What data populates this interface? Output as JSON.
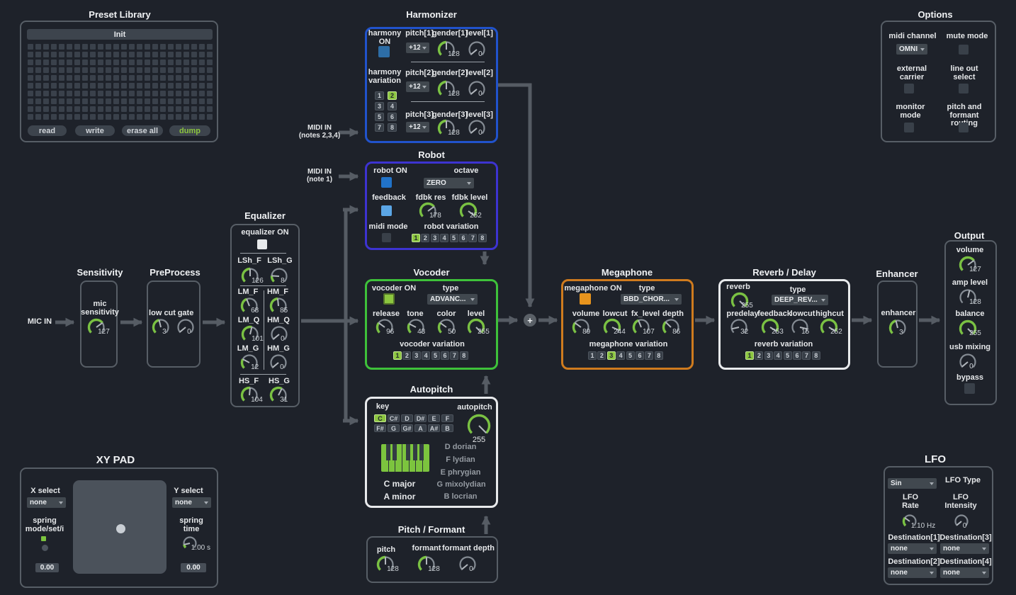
{
  "colors": {
    "accent_green": "#7ac143",
    "harmonizer_blue": "#2153cc",
    "robot_indigo": "#3d33d1",
    "vocoder_green": "#3ec23a",
    "megaphone_orange": "#cf7b1e",
    "panel_light": "#e8eaec",
    "selected_variation": "#8cc63f"
  },
  "routing": {
    "mic_in": "MIC IN",
    "midi_in_harmonizer": [
      "MIDI IN",
      "(notes 2,3,4)"
    ],
    "midi_in_robot": [
      "MIDI IN",
      "(note 1)"
    ],
    "plus": "+"
  },
  "preset_library": {
    "title": "Preset Library",
    "preset_name": "Init",
    "grid": {
      "cols": 24,
      "rows": 10
    },
    "buttons": [
      "read",
      "write",
      "erase all",
      "dump"
    ]
  },
  "harmonizer": {
    "title": "Harmonizer",
    "on_label": [
      "harmony",
      "ON"
    ],
    "variation_label": [
      "harmony",
      "variation"
    ],
    "variation": {
      "labels": [
        "1",
        "2",
        "3",
        "4",
        "5",
        "6",
        "7",
        "8"
      ],
      "selected": "2",
      "cols": 2
    },
    "row1": {
      "pitch_label": "pitch[1]",
      "pitch": "+12",
      "gender_label": "gender[1]",
      "gender": {
        "v": "128",
        "f": 0.5
      },
      "level_label": "level[1]",
      "level": {
        "v": "0",
        "f": 0.02,
        "c": "gray"
      }
    },
    "row2": {
      "pitch_label": "pitch[2]",
      "pitch": "+12",
      "gender_label": "gender[2]",
      "gender": {
        "v": "128",
        "f": 0.5
      },
      "level_label": "level[2]",
      "level": {
        "v": "0",
        "f": 0.02,
        "c": "gray"
      }
    },
    "row3": {
      "pitch_label": "pitch[3]",
      "pitch": "+12",
      "gender_label": "gender[3]",
      "gender": {
        "v": "128",
        "f": 0.5
      },
      "level_label": "level[3]",
      "level": {
        "v": "0",
        "f": 0.02,
        "c": "gray"
      }
    }
  },
  "options": {
    "title": "Options",
    "midi_channel_label": "midi channel",
    "midi_channel": "OMNI",
    "mute_mode_label": "mute mode",
    "external_carrier_label": [
      "external",
      "carrier"
    ],
    "line_out_label": [
      "line out",
      "select"
    ],
    "monitor_mode_label": [
      "monitor",
      "mode"
    ],
    "pitch_formant_label": [
      "pitch and",
      "formant routing"
    ]
  },
  "robot": {
    "title": "Robot",
    "on_label": "robot ON",
    "octave_label": "octave",
    "octave": "ZERO",
    "feedback_label": "feedback",
    "res_label": "fdbk res",
    "res": {
      "v": "178",
      "f": 0.7
    },
    "level_label": "fdbk level",
    "level": {
      "v": "252",
      "f": 0.97
    },
    "midi_mode_label": "midi mode",
    "variation_label": "robot variation",
    "variation": {
      "labels": [
        "1",
        "2",
        "3",
        "4",
        "5",
        "6",
        "7",
        "8"
      ],
      "selected": "1",
      "cols": 8
    }
  },
  "equalizer": {
    "title": "Equalizer",
    "on_label": "equalizer ON",
    "knobs": [
      {
        "label": "LSh_F",
        "v": "126",
        "f": 0.5
      },
      {
        "label": "LSh_G",
        "v": "8",
        "f": 0.18
      },
      {
        "label": "LM_F",
        "v": "68",
        "f": 0.42
      },
      {
        "label": "HM_F",
        "v": "85",
        "f": 0.48
      },
      {
        "label": "LM_Q",
        "v": "101",
        "f": 0.55
      },
      {
        "label": "HM_Q",
        "v": "0",
        "f": 0.02,
        "c": "gray"
      },
      {
        "label": "LM_G",
        "v": "12",
        "f": 0.27
      },
      {
        "label": "HM_G",
        "v": "0",
        "f": 0.02,
        "c": "gray"
      },
      {
        "label": "HS_F",
        "v": "104",
        "f": 0.52
      },
      {
        "label": "HS_G",
        "v": "31",
        "f": 0.6
      }
    ]
  },
  "sensitivity": {
    "title": "Sensitivity",
    "label": [
      "mic",
      "sensitivity"
    ],
    "knob": {
      "v": "127",
      "f": 0.7
    }
  },
  "preprocess": {
    "title": "PreProcess",
    "lowcut_label": "low cut",
    "lowcut": {
      "v": "3",
      "f": 0.45
    },
    "gate_label": "gate",
    "gate": {
      "v": "0",
      "f": 0.02,
      "c": "gray"
    }
  },
  "vocoder": {
    "title": "Vocoder",
    "on_label": "vocoder ON",
    "type_label": "type",
    "type": "ADVANC...",
    "knobs": [
      {
        "label": "release",
        "v": "96",
        "f": 0.3
      },
      {
        "label": "tone",
        "v": "43",
        "f": 0.27
      },
      {
        "label": "color",
        "v": "50",
        "f": 0.3
      },
      {
        "label": "level",
        "v": "255",
        "f": 1
      }
    ],
    "variation_label": "vocoder variation",
    "variation": {
      "labels": [
        "1",
        "2",
        "3",
        "4",
        "5",
        "6",
        "7",
        "8"
      ],
      "selected": "1",
      "cols": 8
    }
  },
  "megaphone": {
    "title": "Megaphone",
    "on_label": "megaphone ON",
    "type_label": "type",
    "type": "BBD_CHOR...",
    "knobs": [
      {
        "label": "volume",
        "v": "89",
        "f": 0.3
      },
      {
        "label": "lowcut",
        "v": "244",
        "f": 0.92
      },
      {
        "label": "fx_level",
        "v": "107",
        "f": 0.42
      },
      {
        "label": "depth",
        "v": "86",
        "f": 0.33
      }
    ],
    "variation_label": "megaphone variation",
    "variation": {
      "labels": [
        "1",
        "2",
        "3",
        "4",
        "5",
        "6",
        "7",
        "8"
      ],
      "selected": "3",
      "cols": 8
    }
  },
  "reverb": {
    "title": "Reverb / Delay",
    "reverb_label": "reverb",
    "reverb": {
      "v": "255",
      "f": 1
    },
    "type_label": "type",
    "type": "DEEP_REV...",
    "knobs": [
      {
        "label": "predelay",
        "v": "32",
        "f": 0.12,
        "c": "gray"
      },
      {
        "label": "feedback",
        "v": "253",
        "f": 0.95
      },
      {
        "label": "lowcut",
        "v": "15",
        "f": 0.88,
        "c": "gray"
      },
      {
        "label": "highcut",
        "v": "252",
        "f": 0.95
      }
    ],
    "variation_label": "reverb variation",
    "variation": {
      "labels": [
        "1",
        "2",
        "3",
        "4",
        "5",
        "6",
        "7",
        "8"
      ],
      "selected": "1",
      "cols": 8
    }
  },
  "enhancer": {
    "title": "Enhancer",
    "label": "enhancer",
    "knob": {
      "v": "3",
      "f": 0.45
    }
  },
  "output": {
    "title": "Output",
    "bypass_label": "bypass",
    "items": [
      {
        "label": "volume",
        "v": "127",
        "f": 0.7
      },
      {
        "label": "amp level",
        "v": "128",
        "f": 0.55,
        "c": "gray"
      },
      {
        "label": "balance",
        "v": "255",
        "f": 1
      },
      {
        "label": "usb mixing",
        "v": "0",
        "f": 0.02,
        "c": "gray"
      }
    ]
  },
  "autopitch": {
    "title": "Autopitch",
    "key_label": "key",
    "keys": {
      "rows": [
        [
          "C",
          "C#",
          "D",
          "D#",
          "E",
          "F"
        ],
        [
          "F#",
          "G",
          "G#",
          "A",
          "A#",
          "B"
        ]
      ],
      "selected": "C"
    },
    "autopitch_label": "autopitch",
    "knob": {
      "v": "255",
      "f": 1,
      "s": 34,
      "vp": "b"
    },
    "scales_left": [
      "C major",
      "A minor"
    ],
    "scales_right": [
      "D dorian",
      "F lydian",
      "E phrygian",
      "G mixolydian",
      "B locrian"
    ]
  },
  "pitch_formant": {
    "title": "Pitch / Formant",
    "knobs": [
      {
        "label": "pitch",
        "v": "128",
        "f": 0.5
      },
      {
        "label": "formant",
        "v": "128",
        "f": 0.5
      },
      {
        "label": "formant depth",
        "v": "0",
        "f": 0.02,
        "c": "gray"
      }
    ]
  },
  "xypad": {
    "title": "XY PAD",
    "x_select_label": "X select",
    "x_select": "none",
    "y_select_label": "Y select",
    "y_select": "none",
    "spring_mode_label": [
      "spring",
      "mode/set/i"
    ],
    "spring_time_label": [
      "spring",
      "time"
    ],
    "spring_time": {
      "v": "1.00 s",
      "f": 0.12,
      "s": 22
    },
    "x_value": "0.00",
    "y_value": "0.00"
  },
  "lfo": {
    "title": "LFO",
    "type_label": "LFO Type",
    "type": "Sin",
    "rate_label": [
      "LFO",
      "Rate"
    ],
    "rate": {
      "v": "1.10 Hz",
      "f": 0.3,
      "s": 22
    },
    "intensity_label": [
      "LFO",
      "Intensity"
    ],
    "intensity": {
      "v": "0",
      "f": 0.02,
      "c": "gray",
      "s": 22
    },
    "d1_label": "Destination[1]",
    "d1": "none",
    "d2_label": "Destination[2]",
    "d2": "none",
    "d3_label": "Destination[3]",
    "d3": "none",
    "d4_label": "Destination[4]",
    "d4": "none"
  }
}
